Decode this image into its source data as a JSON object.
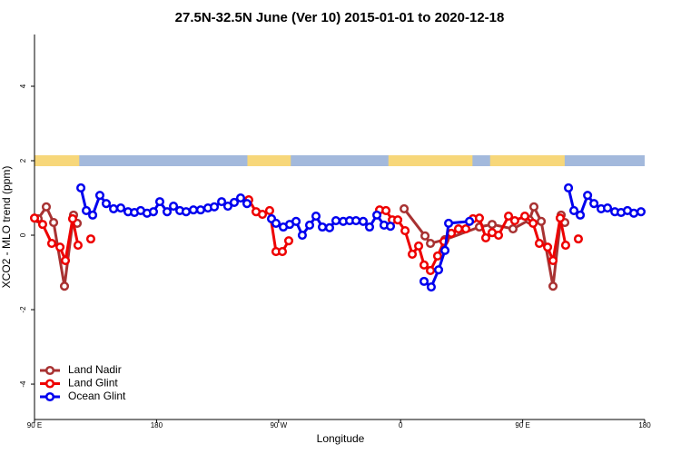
{
  "chart_data": {
    "type": "line",
    "title": "27.5N-32.5N June (Ver 10)   2015-01-01 to 2020-12-18",
    "x_label": "Longitude",
    "y_label": "XCO2 - MLO trend (ppm)",
    "xlim": [
      90,
      540
    ],
    "ylim": [
      -4.95,
      5.39
    ],
    "xticks": [
      {
        "value": 90,
        "label": "90 E"
      },
      {
        "value": 180,
        "label": "180"
      },
      {
        "value": 270,
        "label": "90 W"
      },
      {
        "value": 360,
        "label": "0"
      },
      {
        "value": 450,
        "label": "90 E"
      },
      {
        "value": 540,
        "label": "180"
      }
    ],
    "yticks": [
      -4,
      -2,
      0,
      2,
      4
    ],
    "legend": "bottom-left",
    "surface_band": {
      "y": 2,
      "ocean_color": "#a3b9dc",
      "land_color": "#f7d77a",
      "land": [
        [
          90,
          123
        ],
        [
          247,
          279
        ],
        [
          351,
          413
        ],
        [
          426,
          481
        ]
      ]
    },
    "series": [
      {
        "name": "Land Nadir",
        "color": "#a83232",
        "x": [
          92.7,
          98.7,
          104.1,
          112.1,
          118.8,
          121.5,
          null,
          362.6,
          378,
          382,
          392.7,
          418.1,
          427.5,
          442.9,
          455,
          458.3,
          463.7,
          472.4,
          478.4,
          481.1
        ],
        "values": [
          0.44,
          0.76,
          0.34,
          -1.37,
          0.54,
          0.32,
          null,
          0.71,
          -0.02,
          -0.22,
          -0.12,
          0.22,
          0.29,
          0.17,
          0.41,
          0.76,
          0.37,
          -1.37,
          0.54,
          0.34
        ]
      },
      {
        "name": "Land Glint",
        "color": "#ee0000",
        "x": [
          90,
          96,
          102.7,
          108.8,
          112.8,
          118.1,
          122.1,
          null,
          131.5,
          null,
          248,
          253.4,
          258.1,
          263.4,
          268.1,
          272.8,
          277.5,
          null,
          344.5,
          349.2,
          353.9,
          357.9,
          363.3,
          368.6,
          373.3,
          377.3,
          382,
          387.3,
          392,
          397.4,
          402.7,
          408.1,
          413.4,
          418.1,
          422.8,
          427.5,
          432.2,
          439.6,
          444.2,
          451.6,
          457.7,
          462.3,
          468.4,
          472.4,
          477.7,
          481.7,
          null,
          491.1
        ],
        "values": [
          0.46,
          0.29,
          -0.22,
          -0.32,
          -0.68,
          0.44,
          -0.27,
          null,
          -0.1,
          null,
          0.95,
          0.63,
          0.56,
          0.66,
          -0.44,
          -0.44,
          -0.15,
          null,
          0.68,
          0.66,
          0.41,
          0.41,
          0.12,
          -0.51,
          -0.29,
          -0.8,
          -0.95,
          -0.56,
          -0.17,
          0.05,
          0.17,
          0.17,
          0.44,
          0.46,
          -0.07,
          0.07,
          0,
          0.51,
          0.39,
          0.51,
          0.32,
          -0.22,
          -0.32,
          -0.68,
          0.46,
          -0.27,
          null,
          -0.1
        ]
      },
      {
        "name": "Ocean Glint",
        "color": "#0000ee",
        "x": [
          124.2,
          128.2,
          132.9,
          138.2,
          142.9,
          148.3,
          153.6,
          159,
          163.7,
          168.3,
          173,
          177.7,
          182.4,
          187.8,
          192.5,
          197.2,
          201.8,
          207.2,
          212.5,
          217.9,
          222.6,
          228,
          232.6,
          237.3,
          242,
          246.7,
          null,
          264.8,
          268.1,
          273.5,
          278.2,
          282.9,
          287.5,
          292.9,
          297.6,
          302.3,
          307.6,
          312.3,
          317.7,
          322.4,
          327.1,
          332.4,
          337.1,
          342.5,
          347.8,
          352.5,
          null,
          377.3,
          382.6,
          388,
          392.7,
          395.4,
          410.8,
          null,
          483.8,
          487.8,
          492.5,
          497.9,
          502.6,
          507.9,
          512.6,
          518,
          522.6,
          527.3,
          532,
          537.3
        ],
        "values": [
          1.27,
          0.66,
          0.54,
          1.07,
          0.85,
          0.71,
          0.73,
          0.63,
          0.61,
          0.66,
          0.59,
          0.63,
          0.9,
          0.63,
          0.78,
          0.66,
          0.63,
          0.68,
          0.68,
          0.73,
          0.76,
          0.9,
          0.78,
          0.88,
          1,
          0.85,
          null,
          0.44,
          0.32,
          0.22,
          0.29,
          0.37,
          0,
          0.27,
          0.51,
          0.22,
          0.2,
          0.39,
          0.37,
          0.39,
          0.39,
          0.37,
          0.22,
          0.54,
          0.27,
          0.24,
          null,
          -1.24,
          -1.39,
          -0.93,
          -0.41,
          0.32,
          0.37,
          null,
          1.27,
          0.66,
          0.54,
          1.07,
          0.85,
          0.71,
          0.73,
          0.63,
          0.61,
          0.66,
          0.59,
          0.63
        ]
      }
    ]
  }
}
